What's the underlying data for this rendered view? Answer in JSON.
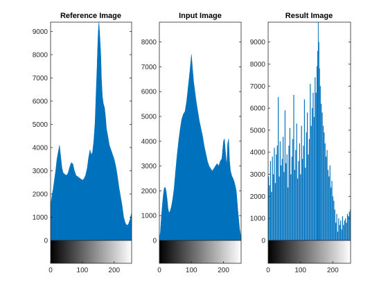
{
  "chart_data": [
    {
      "type": "area",
      "title": "Reference Image",
      "xlabel": "",
      "ylabel": "",
      "xlim": [
        0,
        255
      ],
      "ylim": [
        0,
        9400
      ],
      "xticks": [
        0,
        100,
        200
      ],
      "yticks": [
        0,
        1000,
        2000,
        3000,
        4000,
        5000,
        6000,
        7000,
        8000,
        9000
      ],
      "colorbar": "grayscale 0-255 below axis",
      "fill_color": "#0072bd",
      "points": [
        [
          0,
          1500
        ],
        [
          4,
          1900
        ],
        [
          8,
          2200
        ],
        [
          12,
          2600
        ],
        [
          16,
          3000
        ],
        [
          20,
          3500
        ],
        [
          24,
          3800
        ],
        [
          28,
          4100
        ],
        [
          32,
          3600
        ],
        [
          36,
          3100
        ],
        [
          40,
          2900
        ],
        [
          45,
          2850
        ],
        [
          50,
          2800
        ],
        [
          55,
          2900
        ],
        [
          60,
          3150
        ],
        [
          65,
          3350
        ],
        [
          70,
          3300
        ],
        [
          75,
          3000
        ],
        [
          80,
          2800
        ],
        [
          85,
          2750
        ],
        [
          90,
          2700
        ],
        [
          95,
          2650
        ],
        [
          100,
          2600
        ],
        [
          105,
          2650
        ],
        [
          110,
          2800
        ],
        [
          115,
          3100
        ],
        [
          120,
          3600
        ],
        [
          124,
          3900
        ],
        [
          128,
          3700
        ],
        [
          132,
          3800
        ],
        [
          136,
          4300
        ],
        [
          140,
          5100
        ],
        [
          143,
          6300
        ],
        [
          146,
          7400
        ],
        [
          148,
          8300
        ],
        [
          150,
          9000
        ],
        [
          152,
          9400
        ],
        [
          154,
          9000
        ],
        [
          156,
          8500
        ],
        [
          158,
          8000
        ],
        [
          160,
          7000
        ],
        [
          163,
          6200
        ],
        [
          166,
          5900
        ],
        [
          170,
          5700
        ],
        [
          173,
          5300
        ],
        [
          176,
          4800
        ],
        [
          180,
          4500
        ],
        [
          185,
          4100
        ],
        [
          190,
          3900
        ],
        [
          195,
          3700
        ],
        [
          200,
          3500
        ],
        [
          205,
          3200
        ],
        [
          210,
          2800
        ],
        [
          215,
          2300
        ],
        [
          220,
          1900
        ],
        [
          225,
          1500
        ],
        [
          230,
          1000
        ],
        [
          235,
          750
        ],
        [
          240,
          650
        ],
        [
          245,
          700
        ],
        [
          250,
          900
        ],
        [
          255,
          1200
        ]
      ]
    },
    {
      "type": "area",
      "title": "Input Image",
      "xlabel": "",
      "ylabel": "",
      "xlim": [
        0,
        255
      ],
      "ylim": [
        0,
        8800
      ],
      "xticks": [
        0,
        100,
        200
      ],
      "yticks": [
        0,
        1000,
        2000,
        3000,
        4000,
        5000,
        6000,
        7000,
        8000
      ],
      "colorbar": "grayscale 0-255 below axis",
      "fill_color": "#0072bd",
      "points": [
        [
          0,
          100
        ],
        [
          3,
          300
        ],
        [
          6,
          900
        ],
        [
          9,
          1400
        ],
        [
          12,
          1800
        ],
        [
          15,
          2100
        ],
        [
          18,
          2150
        ],
        [
          21,
          2000
        ],
        [
          24,
          1700
        ],
        [
          27,
          1300
        ],
        [
          30,
          1100
        ],
        [
          34,
          1200
        ],
        [
          38,
          1400
        ],
        [
          42,
          1700
        ],
        [
          46,
          2100
        ],
        [
          50,
          2700
        ],
        [
          55,
          3400
        ],
        [
          60,
          4000
        ],
        [
          65,
          4500
        ],
        [
          70,
          4900
        ],
        [
          75,
          5100
        ],
        [
          80,
          5200
        ],
        [
          85,
          5600
        ],
        [
          90,
          6200
        ],
        [
          95,
          6800
        ],
        [
          98,
          7200
        ],
        [
          100,
          7500
        ],
        [
          103,
          7000
        ],
        [
          107,
          6400
        ],
        [
          111,
          6000
        ],
        [
          115,
          5600
        ],
        [
          120,
          5200
        ],
        [
          125,
          4800
        ],
        [
          130,
          4500
        ],
        [
          135,
          4200
        ],
        [
          140,
          3800
        ],
        [
          145,
          3500
        ],
        [
          150,
          3200
        ],
        [
          155,
          3000
        ],
        [
          160,
          2900
        ],
        [
          165,
          2800
        ],
        [
          170,
          2900
        ],
        [
          175,
          3000
        ],
        [
          180,
          3100
        ],
        [
          185,
          3000
        ],
        [
          190,
          3200
        ],
        [
          195,
          3300
        ],
        [
          200,
          4000
        ],
        [
          203,
          4100
        ],
        [
          206,
          3600
        ],
        [
          210,
          3000
        ],
        [
          213,
          3900
        ],
        [
          216,
          4100
        ],
        [
          219,
          3200
        ],
        [
          222,
          2800
        ],
        [
          226,
          2600
        ],
        [
          230,
          2500
        ],
        [
          235,
          2300
        ],
        [
          240,
          2000
        ],
        [
          245,
          1200
        ],
        [
          250,
          500
        ],
        [
          255,
          100
        ]
      ]
    },
    {
      "type": "bar",
      "title": "Result Image",
      "xlabel": "",
      "ylabel": "",
      "xlim": [
        0,
        255
      ],
      "ylim": [
        0,
        9900
      ],
      "xticks": [
        0,
        100,
        200
      ],
      "yticks": [
        0,
        1000,
        2000,
        3000,
        4000,
        5000,
        6000,
        7000,
        8000,
        9000
      ],
      "colorbar": "grayscale 0-255 below axis",
      "fill_color": "#0072bd",
      "points": [
        [
          0,
          2900
        ],
        [
          3,
          2500
        ],
        [
          6,
          3600
        ],
        [
          9,
          2200
        ],
        [
          12,
          3800
        ],
        [
          15,
          3000
        ],
        [
          18,
          4200
        ],
        [
          21,
          2600
        ],
        [
          24,
          3900
        ],
        [
          27,
          4300
        ],
        [
          30,
          6500
        ],
        [
          33,
          2900
        ],
        [
          36,
          4500
        ],
        [
          39,
          3400
        ],
        [
          42,
          3700
        ],
        [
          45,
          4700
        ],
        [
          48,
          3100
        ],
        [
          51,
          5900
        ],
        [
          54,
          3500
        ],
        [
          57,
          3900
        ],
        [
          60,
          2400
        ],
        [
          63,
          4300
        ],
        [
          66,
          5100
        ],
        [
          69,
          3000
        ],
        [
          72,
          3800
        ],
        [
          75,
          4600
        ],
        [
          78,
          6600
        ],
        [
          81,
          3200
        ],
        [
          84,
          4100
        ],
        [
          87,
          5300
        ],
        [
          90,
          2800
        ],
        [
          93,
          3600
        ],
        [
          96,
          4400
        ],
        [
          99,
          3000
        ],
        [
          102,
          5200
        ],
        [
          105,
          3700
        ],
        [
          108,
          4300
        ],
        [
          111,
          6400
        ],
        [
          114,
          3300
        ],
        [
          117,
          4900
        ],
        [
          120,
          5800
        ],
        [
          123,
          3900
        ],
        [
          126,
          4600
        ],
        [
          129,
          7100
        ],
        [
          132,
          5200
        ],
        [
          135,
          6000
        ],
        [
          138,
          6700
        ],
        [
          141,
          5600
        ],
        [
          144,
          7400
        ],
        [
          147,
          6700
        ],
        [
          150,
          7900
        ],
        [
          152,
          8600
        ],
        [
          154,
          9900
        ],
        [
          156,
          9000
        ],
        [
          158,
          7800
        ],
        [
          160,
          7000
        ],
        [
          163,
          6200
        ],
        [
          166,
          5800
        ],
        [
          169,
          5200
        ],
        [
          172,
          4900
        ],
        [
          175,
          4400
        ],
        [
          178,
          3800
        ],
        [
          181,
          4100
        ],
        [
          184,
          3200
        ],
        [
          187,
          2900
        ],
        [
          190,
          3400
        ],
        [
          193,
          2400
        ],
        [
          196,
          2700
        ],
        [
          199,
          2000
        ],
        [
          202,
          1800
        ],
        [
          205,
          1400
        ],
        [
          208,
          800
        ],
        [
          211,
          1200
        ],
        [
          214,
          400
        ],
        [
          217,
          1000
        ],
        [
          220,
          700
        ],
        [
          223,
          900
        ],
        [
          226,
          500
        ],
        [
          229,
          1100
        ],
        [
          232,
          700
        ],
        [
          235,
          900
        ],
        [
          238,
          1000
        ],
        [
          241,
          800
        ],
        [
          244,
          1200
        ],
        [
          247,
          1100
        ],
        [
          250,
          1300
        ],
        [
          253,
          1400
        ],
        [
          255,
          1500
        ]
      ]
    }
  ]
}
